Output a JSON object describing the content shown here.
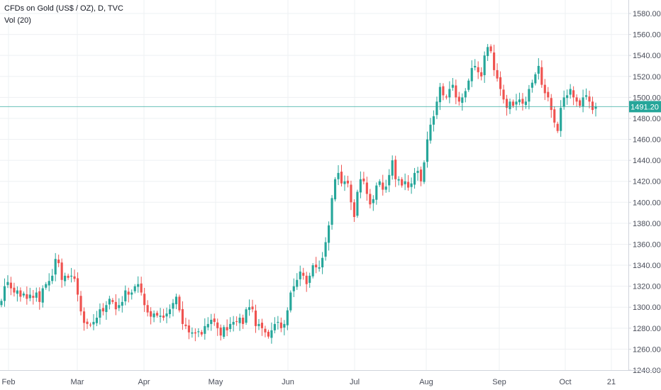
{
  "legend": {
    "symbol": "CFDs on Gold (US$ / OZ), D, TVC",
    "volume": "Vol (20)"
  },
  "colors": {
    "up": "#26a69a",
    "down": "#ef5350",
    "grid": "#eef0f3",
    "axis_line": "#d1d4dc",
    "last_price": "#26a69a",
    "text": "#131722"
  },
  "chart_data": {
    "type": "candlestick",
    "title": "CFDs on Gold (US$ / OZ), D, TVC",
    "indicator": "Vol (20)",
    "last_price": "1491.20",
    "ylim": [
      1240,
      1590
    ],
    "y_ticks": [
      "1580.00",
      "1560.00",
      "1540.00",
      "1520.00",
      "1500.00",
      "1480.00",
      "1460.00",
      "1440.00",
      "1420.00",
      "1400.00",
      "1380.00",
      "1360.00",
      "1340.00",
      "1320.00",
      "1300.00",
      "1280.00",
      "1260.00",
      "1240.00"
    ],
    "x_ticks": [
      "Feb",
      "Mar",
      "Apr",
      "May",
      "Jun",
      "Jul",
      "Aug",
      "Sep",
      "Oct",
      "21"
    ],
    "grid": true,
    "series_close": [
      1306,
      1320,
      1324,
      1318,
      1314,
      1316,
      1310,
      1313,
      1308,
      1312,
      1309,
      1314,
      1305,
      1318,
      1322,
      1325,
      1330,
      1346,
      1342,
      1326,
      1330,
      1328,
      1330,
      1327,
      1312,
      1296,
      1285,
      1284,
      1283,
      1286,
      1290,
      1298,
      1296,
      1302,
      1308,
      1305,
      1298,
      1302,
      1305,
      1316,
      1312,
      1314,
      1320,
      1322,
      1314,
      1302,
      1295,
      1291,
      1294,
      1292,
      1292,
      1290,
      1294,
      1298,
      1304,
      1310,
      1297,
      1284,
      1282,
      1276,
      1276,
      1275,
      1277,
      1274,
      1282,
      1284,
      1288,
      1286,
      1280,
      1273,
      1281,
      1278,
      1284,
      1286,
      1286,
      1290,
      1284,
      1298,
      1300,
      1298,
      1282,
      1284,
      1280,
      1276,
      1272,
      1278,
      1284,
      1286,
      1280,
      1284,
      1297,
      1314,
      1320,
      1326,
      1334,
      1330,
      1322,
      1330,
      1340,
      1338,
      1338,
      1347,
      1362,
      1378,
      1404,
      1422,
      1428,
      1418,
      1420,
      1418,
      1400,
      1386,
      1410,
      1422,
      1420,
      1408,
      1398,
      1403,
      1416,
      1420,
      1412,
      1415,
      1426,
      1440,
      1422,
      1422,
      1416,
      1420,
      1414,
      1418,
      1428,
      1430,
      1420,
      1438,
      1460,
      1474,
      1482,
      1496,
      1510,
      1502,
      1500,
      1508,
      1512,
      1500,
      1496,
      1500,
      1506,
      1516,
      1528,
      1530,
      1524,
      1520,
      1540,
      1548,
      1544,
      1526,
      1518,
      1508,
      1498,
      1490,
      1496,
      1492,
      1496,
      1498,
      1494,
      1496,
      1508,
      1514,
      1522,
      1530,
      1512,
      1504,
      1500,
      1488,
      1476,
      1468,
      1490,
      1500,
      1502,
      1508,
      1500,
      1496,
      1492,
      1500,
      1502,
      1496,
      1488,
      1491.2
    ]
  }
}
